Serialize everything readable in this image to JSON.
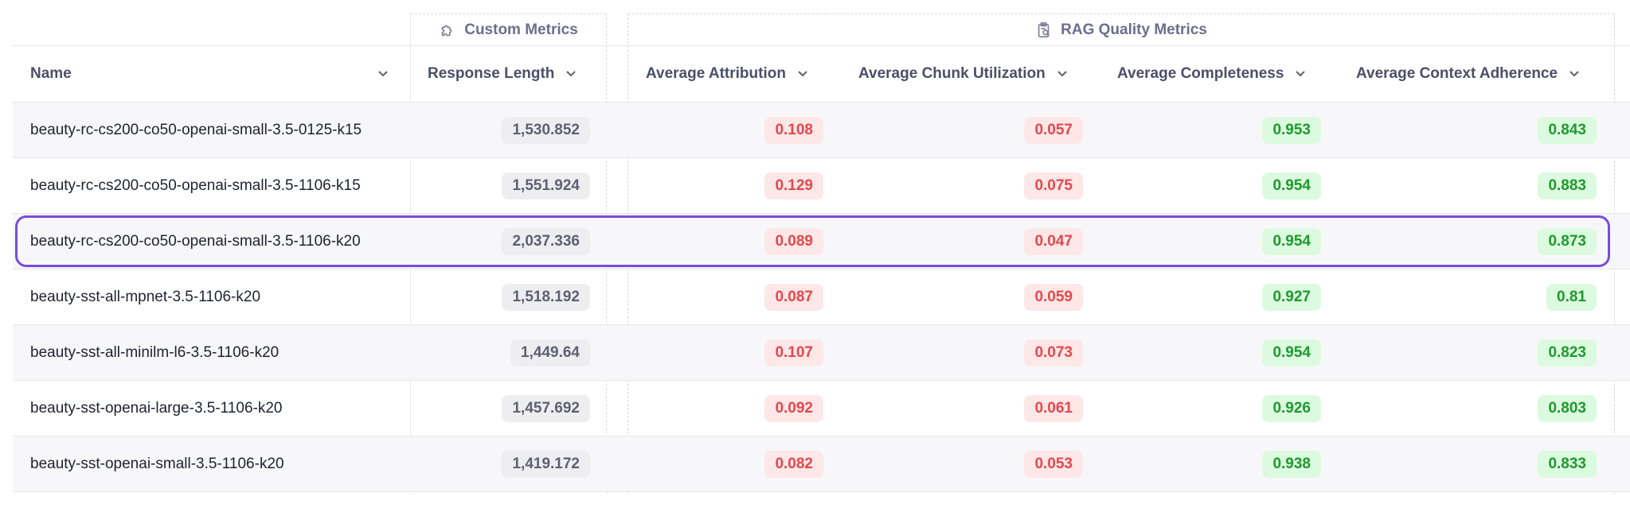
{
  "groups": {
    "custom": {
      "label": "Custom Metrics",
      "icon": "puzzle-icon"
    },
    "rag": {
      "label": "RAG Quality Metrics",
      "icon": "clipboard-search-icon"
    }
  },
  "columns": {
    "name": "Name",
    "response_length": "Response Length",
    "attribution": "Average Attribution",
    "chunk_utilization": "Average Chunk Utilization",
    "completeness": "Average Completeness",
    "context_adherence": "Average Context Adherence"
  },
  "rows": [
    {
      "name": "beauty-rc-cs200-co50-openai-small-3.5-0125-k15",
      "response_length": "1,530.852",
      "attribution": "0.108",
      "chunk_utilization": "0.057",
      "completeness": "0.953",
      "context_adherence": "0.843"
    },
    {
      "name": "beauty-rc-cs200-co50-openai-small-3.5-1106-k15",
      "response_length": "1,551.924",
      "attribution": "0.129",
      "chunk_utilization": "0.075",
      "completeness": "0.954",
      "context_adherence": "0.883"
    },
    {
      "name": "beauty-rc-cs200-co50-openai-small-3.5-1106-k20",
      "response_length": "2,037.336",
      "attribution": "0.089",
      "chunk_utilization": "0.047",
      "completeness": "0.954",
      "context_adherence": "0.873"
    },
    {
      "name": "beauty-sst-all-mpnet-3.5-1106-k20",
      "response_length": "1,518.192",
      "attribution": "0.087",
      "chunk_utilization": "0.059",
      "completeness": "0.927",
      "context_adherence": "0.81"
    },
    {
      "name": "beauty-sst-all-minilm-l6-3.5-1106-k20",
      "response_length": "1,449.64",
      "attribution": "0.107",
      "chunk_utilization": "0.073",
      "completeness": "0.954",
      "context_adherence": "0.823"
    },
    {
      "name": "beauty-sst-openai-large-3.5-1106-k20",
      "response_length": "1,457.692",
      "attribution": "0.092",
      "chunk_utilization": "0.061",
      "completeness": "0.926",
      "context_adherence": "0.803"
    },
    {
      "name": "beauty-sst-openai-small-3.5-1106-k20",
      "response_length": "1,419.172",
      "attribution": "0.082",
      "chunk_utilization": "0.053",
      "completeness": "0.938",
      "context_adherence": "0.833"
    }
  ],
  "colors": {
    "selected_outline": "#7b4ddb",
    "good": "#1e9a2e",
    "bad": "#e5484d"
  }
}
